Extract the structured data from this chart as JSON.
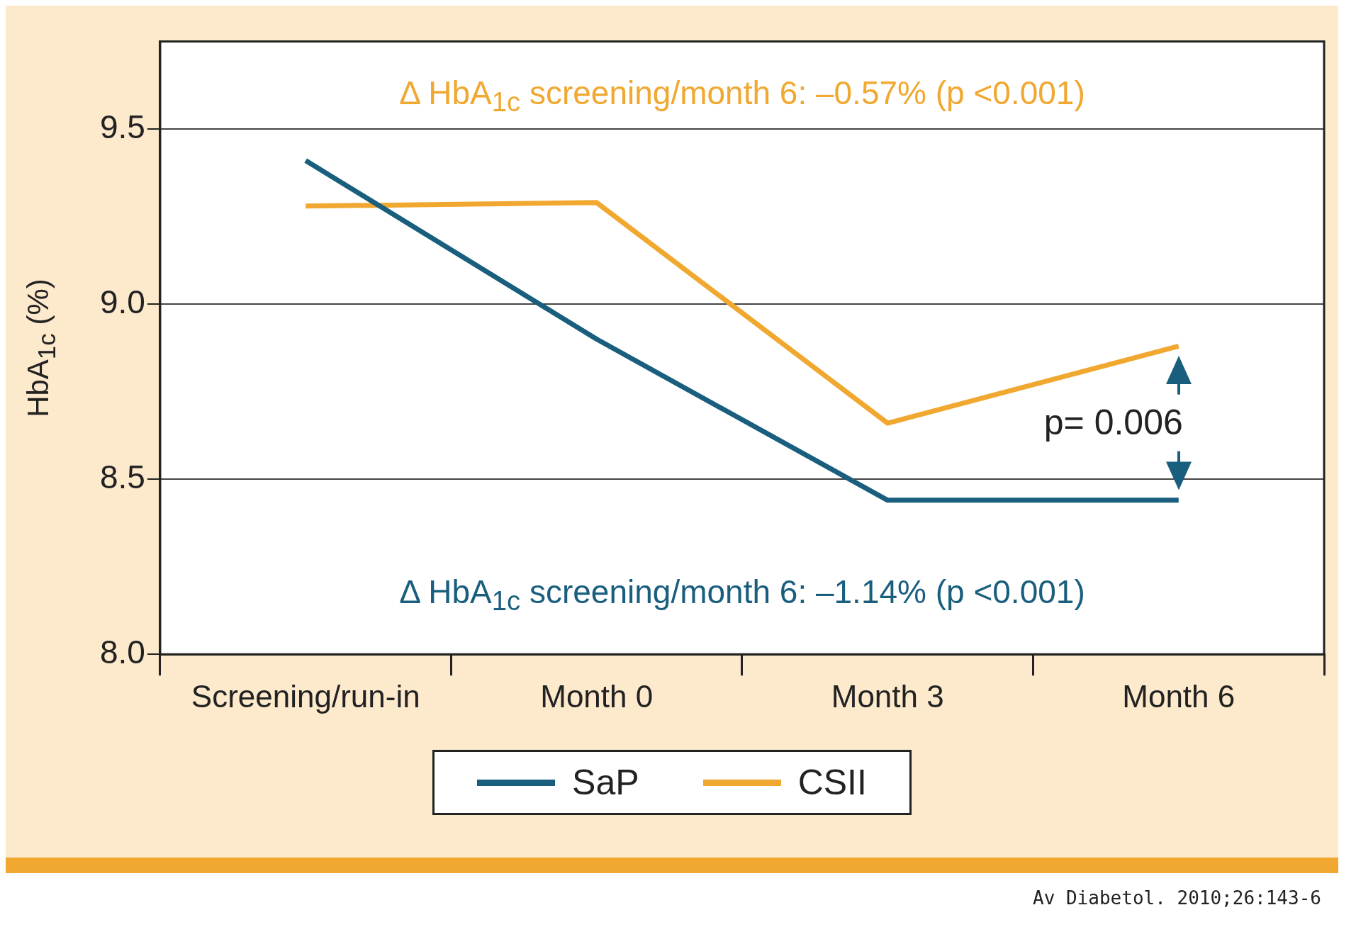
{
  "chart_data": {
    "type": "line",
    "ylabel": "HbA$_{1c}$ (%)",
    "categories": [
      "Screening/run-in",
      "Month 0",
      "Month 3",
      "Month 6"
    ],
    "series": [
      {
        "name": "SaP",
        "color": "#1a5e7e",
        "values": [
          9.41,
          8.9,
          8.44,
          8.44
        ]
      },
      {
        "name": "CSII",
        "color": "#f0a830",
        "values": [
          9.28,
          9.29,
          8.66,
          8.88
        ]
      }
    ],
    "ylim": [
      8,
      9.75
    ],
    "yticks": [
      {
        "value": 8,
        "label": "8.0"
      },
      8.5,
      {
        "value": 9,
        "label": "9.0"
      },
      9.5
    ],
    "grid": "y",
    "legend": "bottom",
    "marker": "none",
    "line_style": "solid",
    "annotations": [
      "Δ HbA$_{1c}$ screening/month 6: –0.57% (p <0.001)",
      "Δ HbA$_{1c}$ screening/month 6: –1.14% (p <0.001)",
      "p= 0.006",
      "Av Diabetol. 2010;26:143-6"
    ]
  }
}
